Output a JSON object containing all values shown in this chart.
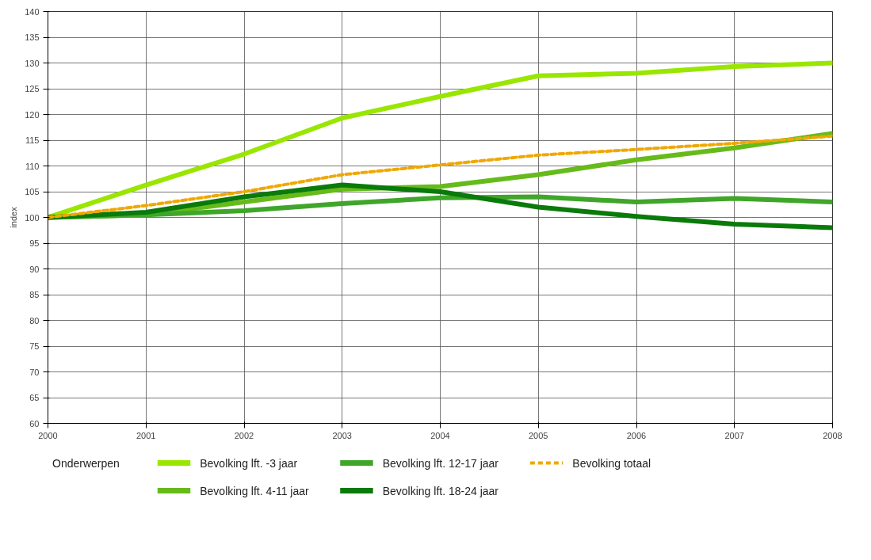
{
  "chart_data": {
    "type": "line",
    "ylabel": "index",
    "legend_title": "Onderwerpen",
    "x": [
      2000,
      2001,
      2002,
      2003,
      2004,
      2005,
      2006,
      2007,
      2008
    ],
    "series": [
      {
        "name": "Bevolking lft. -3 jaar",
        "color": "#99e600",
        "values": [
          100,
          106.3,
          112.3,
          119.3,
          123.5,
          127.5,
          128,
          129.3,
          130
        ]
      },
      {
        "name": "Bevolking lft. 4-11 jaar",
        "color": "#66bb1a",
        "values": [
          100,
          100.5,
          103,
          105.5,
          106,
          108.3,
          111.2,
          113.5,
          116.3
        ]
      },
      {
        "name": "Bevolking lft. 12-17 jaar",
        "color": "#3fa62a",
        "values": [
          100,
          100.5,
          101.3,
          102.7,
          103.8,
          104,
          103,
          103.7,
          103
        ]
      },
      {
        "name": "Bevolking lft. 18-24 jaar",
        "color": "#0a7a0a",
        "values": [
          100,
          101,
          104,
          106.3,
          105,
          102,
          100.2,
          98.7,
          98
        ]
      },
      {
        "name": "Bevolking totaal",
        "color": "#f0a800",
        "line_style": "dashed",
        "values": [
          100,
          102.3,
          105,
          108.3,
          110.2,
          112.1,
          113.2,
          114.4,
          115.8
        ]
      }
    ],
    "xlim": [
      2000,
      2008
    ],
    "xticks": [
      2000,
      2001,
      2002,
      2003,
      2004,
      2005,
      2006,
      2007,
      2008
    ],
    "ylim": [
      60,
      140
    ],
    "yticks": [
      60,
      65,
      70,
      75,
      80,
      85,
      90,
      95,
      100,
      105,
      110,
      115,
      120,
      125,
      130,
      135,
      140
    ],
    "grid": true,
    "legend": "bottom",
    "marker": "none",
    "line_style": "solid"
  }
}
